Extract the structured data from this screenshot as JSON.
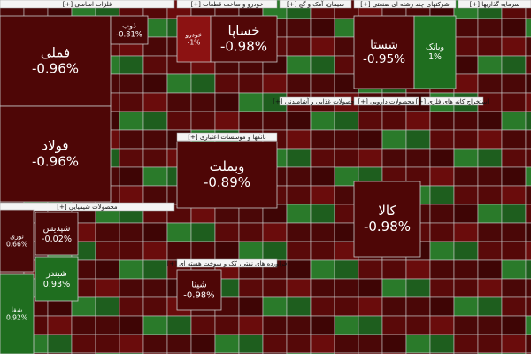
{
  "chart_data": {
    "type": "treemap",
    "sectors": [
      "[+] فلزات اساسی",
      "[+] خودرو و ساخت قطعات",
      "[+] سیمان، آهک و گچ",
      "[+] شرکتهای چند رشته ای صنعتی",
      "[+] سرمایه گذاریها",
      "[+] محصولات شیمیایی",
      "[+] بانکها و موسسات اعتباری",
      "[+] فراورده های نفتی، کک و سوخت هسته ای",
      "[+] محصولات غذایی و آشامیدنی",
      "[+] محصولات دارویی",
      "[+] استخراج کانه های فلزی"
    ],
    "tiles": [
      {
        "name": "فملی",
        "value": -0.96,
        "value_label": "-0.96%",
        "color": "#4e0606"
      },
      {
        "name": "فولاد",
        "value": -0.96,
        "value_label": "-0.96%",
        "color": "#4e0606"
      },
      {
        "name": "ذوب",
        "value": -0.81,
        "value_label": "-0.81%",
        "color": "#4a0707"
      },
      {
        "name": "خودرو",
        "value": -1,
        "value_label": "-1%",
        "color": "#8c1212"
      },
      {
        "name": "خساپا",
        "value": -0.98,
        "value_label": "-0.98%",
        "color": "#520707"
      },
      {
        "name": "وبملت",
        "value": -0.89,
        "value_label": "-0.89%",
        "color": "#4e0606"
      },
      {
        "name": "شستا",
        "value": -0.95,
        "value_label": "-0.95%",
        "color": "#4e0606"
      },
      {
        "name": "وبانک",
        "value": 1,
        "value_label": "1%",
        "color": "#1f6e1f"
      },
      {
        "name": "کالا",
        "value": -0.98,
        "value_label": "-0.98%",
        "color": "#4e0606"
      },
      {
        "name": "نوری",
        "value": 0.66,
        "value_label": "0.66%",
        "color": "#4a0707"
      },
      {
        "name": "شپدیس",
        "value": -0.02,
        "value_label": "-0.02%",
        "color": "#4a0707"
      },
      {
        "name": "شبندر",
        "value": 0.93,
        "value_label": "0.93%",
        "color": "#1f6e1f"
      },
      {
        "name": "شفا",
        "value": 0.92,
        "value_label": "0.92%",
        "color": "#1f6e1f"
      },
      {
        "name": "شپنا",
        "value": -0.98,
        "value_label": "-0.98%",
        "color": "#4e0606"
      }
    ]
  }
}
